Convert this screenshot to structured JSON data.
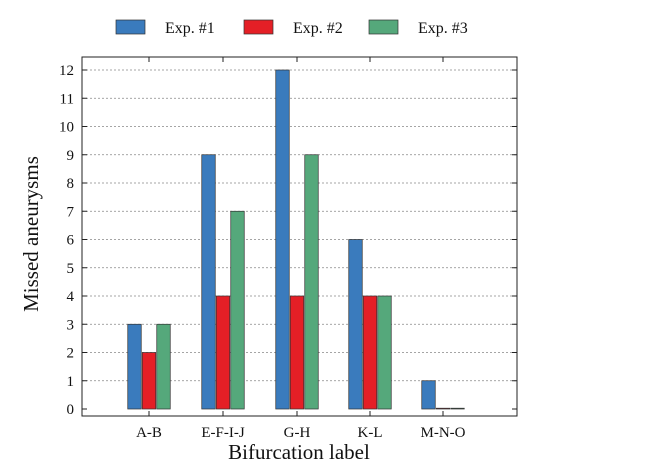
{
  "chart_data": {
    "type": "bar",
    "title": "",
    "xlabel": "Bifurcation label",
    "ylabel": "Missed aneurysms",
    "categories": [
      "A-B",
      "E-F-I-J",
      "G-H",
      "K-L",
      "M-N-O"
    ],
    "series": [
      {
        "name": "Exp. #1",
        "color": "#3a7bbd",
        "values": [
          3,
          9,
          12,
          6,
          1
        ]
      },
      {
        "name": "Exp. #2",
        "color": "#e41f26",
        "values": [
          2,
          4,
          4,
          4,
          0
        ]
      },
      {
        "name": "Exp. #3",
        "color": "#55a87b",
        "values": [
          3,
          7,
          9,
          4,
          0
        ]
      }
    ],
    "ylim": [
      0,
      12
    ],
    "yticks": [
      0,
      1,
      2,
      3,
      4,
      5,
      6,
      7,
      8,
      9,
      10,
      11,
      12
    ],
    "grid": "horizontal dashed",
    "legend_position": "top"
  }
}
